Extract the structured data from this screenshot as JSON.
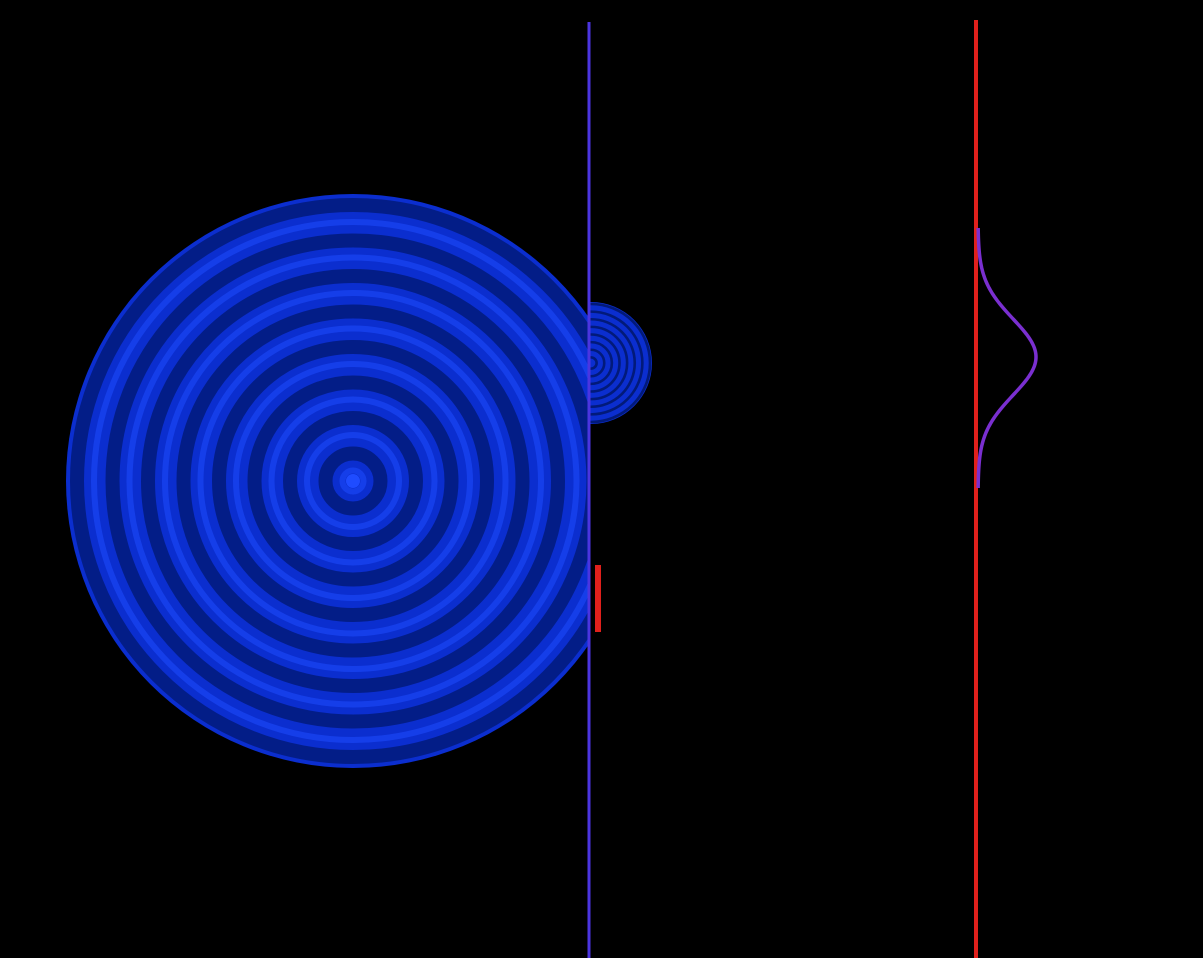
{
  "scene": {
    "background_color": "#000000",
    "large_wave": {
      "fill_color": "#0b2ecf",
      "ring_color": "#021a7a",
      "crest_color": "#1f4cff",
      "ring_count": 8
    },
    "small_wave": {
      "fill_color": "#0b2ecf",
      "ring_color": "#021a7a",
      "ring_count": 8
    },
    "slit_barrier": {
      "color": "#4b35e0",
      "slit_marker_color": "#e0201c"
    },
    "detection_screen": {
      "color": "#e0201c"
    },
    "intensity_curve": {
      "color": "#7a2fd0"
    }
  }
}
